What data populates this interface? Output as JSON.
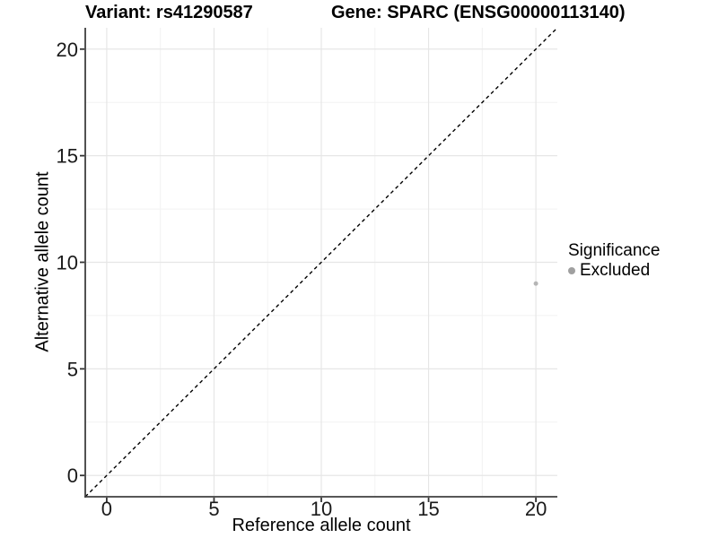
{
  "figure": {
    "title_left": "Variant: rs41290587",
    "title_right": "Gene: SPARC (ENSG00000113140)"
  },
  "chart_data": {
    "type": "scatter",
    "title": "Variant: rs41290587 — Gene: SPARC (ENSG00000113140)",
    "xlabel": "Reference allele count",
    "ylabel": "Alternative allele count",
    "xlim": [
      -1,
      21
    ],
    "ylim": [
      -1,
      21
    ],
    "x_ticks": [
      0,
      5,
      10,
      15,
      20
    ],
    "y_ticks": [
      0,
      5,
      10,
      15,
      20
    ],
    "x_minor_ticks": [
      2.5,
      7.5,
      12.5,
      17.5
    ],
    "y_minor_ticks": [
      2.5,
      7.5,
      12.5,
      17.5
    ],
    "grid": "major+minor",
    "series": [
      {
        "name": "Excluded",
        "points": [
          {
            "x": 20,
            "y": 9
          }
        ],
        "color": "#b5b5b5"
      }
    ],
    "reference_line": {
      "type": "identity",
      "slope": 1,
      "intercept": 0,
      "style": "dashed",
      "color": "#000000"
    },
    "legend": {
      "position": "right",
      "title": "Significance",
      "items": [
        {
          "label": "Excluded",
          "color": "#a0a0a0"
        }
      ]
    },
    "colors": {
      "background": "#ffffff",
      "grid_major": "#e6e6e6",
      "grid_minor": "#f2f2f2",
      "axis_line": "#3f3f3f",
      "tick_mark": "#333333",
      "tick_label": "#1a1a1a",
      "point": "#b5b5b5"
    }
  }
}
